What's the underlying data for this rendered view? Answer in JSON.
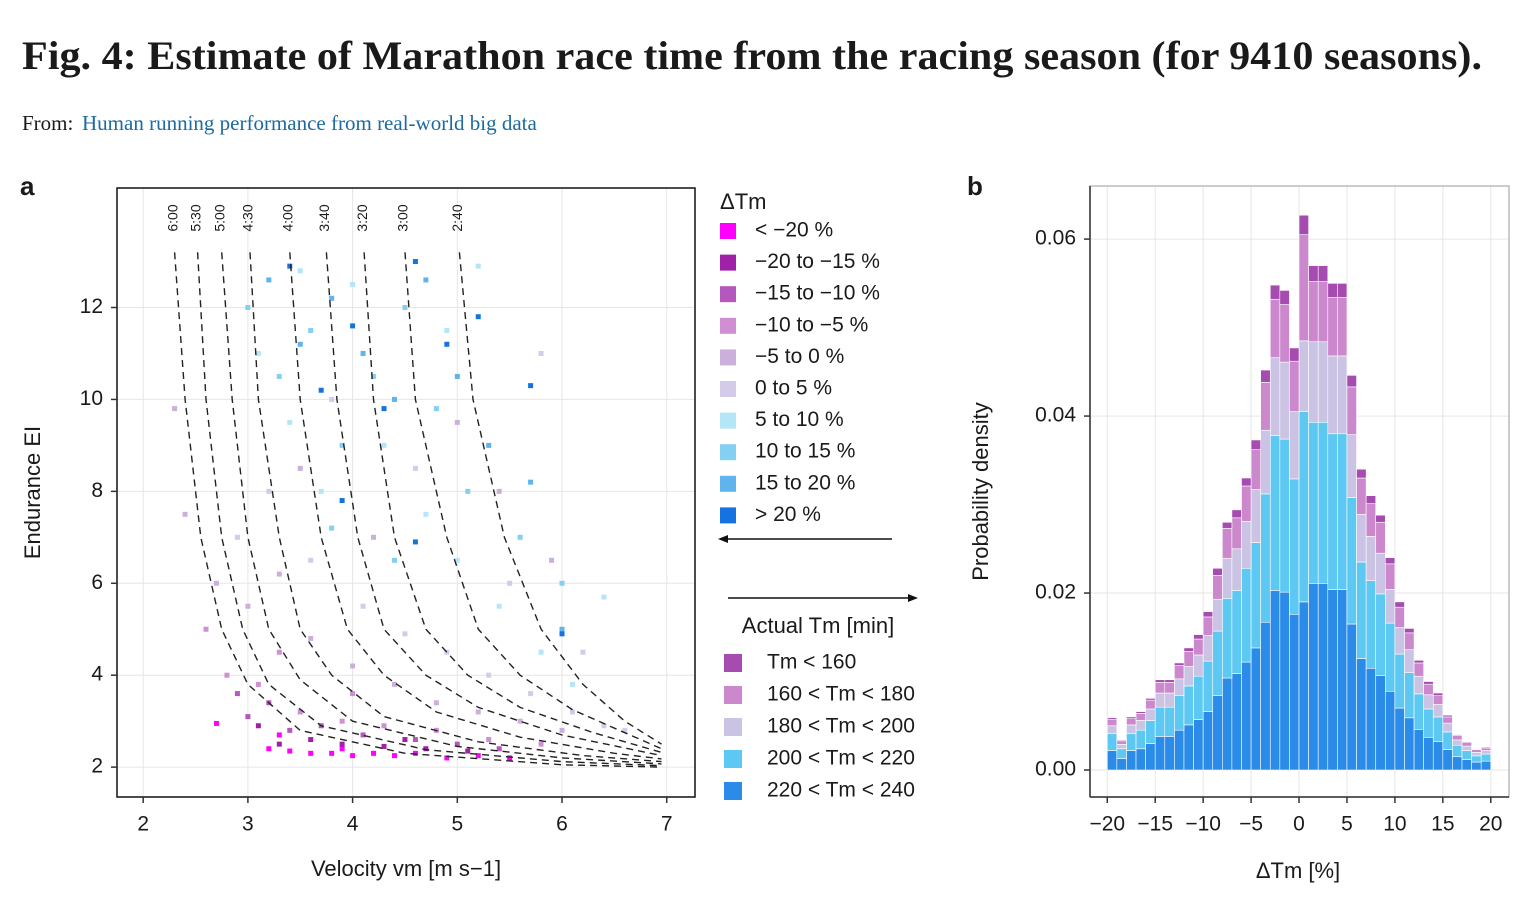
{
  "header": {
    "title": "Fig. 4: Estimate of Marathon race time from the racing season (for 9410 seasons).",
    "from_label": "From:",
    "from_link": "Human running performance from real-world big data"
  },
  "chart_data": [
    {
      "type": "scatter",
      "panel": "a",
      "x_label": "Velocity vm [m s−1]",
      "y_label": "Endurance EI",
      "legend_title": "ΔTm",
      "xlim": [
        1.75,
        7.27
      ],
      "ylim": [
        1.35,
        14.6
      ],
      "xticks": [
        2,
        3,
        4,
        5,
        6,
        7
      ],
      "yticks": [
        2,
        4,
        6,
        8,
        10,
        12
      ],
      "grid": true,
      "series": [
        {
          "name": "< −20 %",
          "color": "#ff00ff",
          "x": [
            2.7,
            3.2,
            3.4,
            3.6,
            3.8,
            4.0,
            4.2,
            4.4,
            4.6,
            4.9,
            5.2,
            5.5,
            3.3,
            3.9
          ],
          "y": [
            2.95,
            2.4,
            2.35,
            2.3,
            2.3,
            2.25,
            2.3,
            2.25,
            2.3,
            2.2,
            2.25,
            2.2,
            2.7,
            2.4
          ]
        },
        {
          "name": "−20 to −15 %",
          "color": "#a020a8",
          "x": [
            3.3,
            3.6,
            3.9,
            4.3,
            4.7,
            5.1,
            3.1,
            4.5
          ],
          "y": [
            2.5,
            2.6,
            2.5,
            2.45,
            2.4,
            2.35,
            2.9,
            2.6
          ]
        },
        {
          "name": "−15 to −10 %",
          "color": "#b558bd",
          "x": [
            3.0,
            3.4,
            3.7,
            4.1,
            4.6,
            5.0,
            5.4,
            3.2,
            2.9
          ],
          "y": [
            3.1,
            2.8,
            2.9,
            2.7,
            2.6,
            2.5,
            2.4,
            3.4,
            3.6
          ]
        },
        {
          "name": "−10 to −5 %",
          "color": "#d08fd2",
          "x": [
            2.6,
            2.8,
            3.1,
            3.5,
            3.9,
            4.3,
            4.8,
            5.3,
            5.8,
            3.3,
            4.0
          ],
          "y": [
            5.0,
            4.0,
            3.8,
            3.2,
            3.0,
            2.9,
            2.8,
            2.6,
            2.5,
            4.5,
            3.6
          ]
        },
        {
          "name": "−5 to 0 %",
          "color": "#cbb0dc",
          "x": [
            2.4,
            2.7,
            3.0,
            3.3,
            3.6,
            4.0,
            4.4,
            4.8,
            5.2,
            5.6,
            6.0,
            3.5,
            4.2,
            5.0,
            5.4,
            2.3,
            5.9
          ],
          "y": [
            7.5,
            6.0,
            5.5,
            6.2,
            4.8,
            4.2,
            3.8,
            3.4,
            3.2,
            3.0,
            2.8,
            8.5,
            7.0,
            9.5,
            8.0,
            9.8,
            6.5
          ]
        },
        {
          "name": "0 to 5 %",
          "color": "#d3cbe9",
          "x": [
            2.9,
            3.2,
            3.6,
            4.1,
            4.5,
            4.9,
            5.3,
            5.7,
            6.1,
            6.4,
            3.8,
            4.6,
            5.5,
            6.2,
            6.6,
            5.8
          ],
          "y": [
            7.0,
            8.0,
            6.5,
            5.5,
            4.9,
            4.5,
            4.0,
            3.6,
            3.2,
            2.9,
            10.0,
            8.5,
            6.0,
            4.5,
            2.8,
            11.0
          ]
        },
        {
          "name": "5 to 10 %",
          "color": "#b5e6f8",
          "x": [
            3.1,
            3.4,
            3.7,
            4.0,
            4.3,
            4.7,
            5.0,
            5.4,
            5.8,
            6.4,
            3.5,
            4.9,
            6.1,
            5.2
          ],
          "y": [
            11.0,
            9.5,
            8.0,
            12.5,
            9.0,
            7.5,
            6.5,
            5.5,
            4.5,
            5.7,
            12.8,
            11.5,
            3.8,
            12.9
          ]
        },
        {
          "name": "10 to 15 %",
          "color": "#83d0f2",
          "x": [
            3.0,
            3.3,
            3.6,
            3.9,
            4.2,
            4.5,
            4.8,
            5.1,
            5.6,
            6.0,
            4.4,
            3.8
          ],
          "y": [
            12.0,
            10.5,
            11.5,
            9.0,
            10.5,
            12.0,
            9.8,
            8.0,
            7.0,
            6.0,
            6.5,
            7.2
          ]
        },
        {
          "name": "15 to 20 %",
          "color": "#5fb4ee",
          "x": [
            3.2,
            3.5,
            3.8,
            4.1,
            4.4,
            4.7,
            5.0,
            5.3,
            5.7,
            6.0
          ],
          "y": [
            12.6,
            11.2,
            12.2,
            11.0,
            10.0,
            12.6,
            10.5,
            9.0,
            8.2,
            5.0
          ]
        },
        {
          "name": "> 20 %",
          "color": "#1473e0",
          "x": [
            3.4,
            3.7,
            4.0,
            4.3,
            4.6,
            4.9,
            5.2,
            5.7,
            6.0,
            3.9,
            4.6
          ],
          "y": [
            12.9,
            10.2,
            11.6,
            9.8,
            13.0,
            11.2,
            11.8,
            10.3,
            4.9,
            7.8,
            6.9
          ]
        }
      ],
      "curves": [
        {
          "label": "6:00",
          "x": [
            2.3,
            2.4,
            2.55,
            2.75,
            3.0,
            3.5,
            4.5,
            6.0,
            6.95
          ],
          "y": [
            13.2,
            10,
            7,
            5,
            3.8,
            2.8,
            2.3,
            2.05,
            2.0
          ]
        },
        {
          "label": "5:30",
          "x": [
            2.52,
            2.6,
            2.75,
            2.95,
            3.2,
            3.7,
            4.7,
            6.0,
            6.95
          ],
          "y": [
            13.2,
            10,
            7,
            5,
            3.8,
            2.9,
            2.38,
            2.12,
            2.03
          ]
        },
        {
          "label": "5:00",
          "x": [
            2.75,
            2.85,
            3.0,
            3.2,
            3.5,
            4.0,
            5.0,
            6.0,
            6.95
          ],
          "y": [
            13.2,
            10,
            7,
            5,
            3.9,
            3.0,
            2.45,
            2.2,
            2.07
          ]
        },
        {
          "label": "4:30",
          "x": [
            3.02,
            3.1,
            3.3,
            3.5,
            3.8,
            4.3,
            5.2,
            6.2,
            6.95
          ],
          "y": [
            13.2,
            10,
            7,
            5,
            4.0,
            3.1,
            2.55,
            2.25,
            2.12
          ]
        },
        {
          "label": "4:00",
          "x": [
            3.4,
            3.5,
            3.7,
            3.95,
            4.3,
            4.8,
            5.6,
            6.5,
            6.95
          ],
          "y": [
            13.2,
            10,
            7,
            5,
            4.0,
            3.2,
            2.65,
            2.3,
            2.18
          ]
        },
        {
          "label": "3:40",
          "x": [
            3.75,
            3.85,
            4.05,
            4.3,
            4.7,
            5.2,
            6.0,
            6.95
          ],
          "y": [
            13.2,
            10,
            7,
            5,
            4.0,
            3.3,
            2.7,
            2.25
          ]
        },
        {
          "label": "3:20",
          "x": [
            4.11,
            4.2,
            4.4,
            4.7,
            5.1,
            5.6,
            6.3,
            6.95
          ],
          "y": [
            13.2,
            10,
            7,
            5,
            4.0,
            3.3,
            2.75,
            2.32
          ]
        },
        {
          "label": "3:00",
          "x": [
            4.5,
            4.6,
            4.9,
            5.2,
            5.6,
            6.1,
            6.6,
            6.95
          ],
          "y": [
            13.2,
            10,
            7,
            5,
            4.0,
            3.25,
            2.75,
            2.4
          ]
        },
        {
          "label": "2:40",
          "x": [
            5.02,
            5.15,
            5.45,
            5.8,
            6.2,
            6.6,
            6.95
          ],
          "y": [
            13.2,
            10,
            7,
            5,
            3.8,
            3.0,
            2.5
          ]
        }
      ]
    },
    {
      "type": "histogram",
      "panel": "b",
      "x_label": "ΔTm [%]",
      "y_label": "Probability density",
      "legend_title": "Actual Tm [min]",
      "xlim": [
        -21.8,
        21.9
      ],
      "ylim": [
        -0.00305,
        0.066
      ],
      "xticks": [
        {
          "value": -20,
          "label": "−20"
        },
        {
          "value": -15,
          "label": "−15"
        },
        {
          "value": -10,
          "label": "−10"
        },
        {
          "value": -5,
          "label": "−5"
        },
        0,
        5,
        10,
        15,
        20
      ],
      "yticks": [
        {
          "value": 0,
          "label": "0.00"
        },
        0.02,
        0.04,
        0.06
      ],
      "grid": true,
      "bins": [
        -20,
        -19,
        -18,
        -17,
        -16,
        -15,
        -14,
        -13,
        -12,
        -11,
        -10,
        -9,
        -8,
        -7,
        -6,
        -5,
        -4,
        -3,
        -2,
        -1,
        0,
        1,
        2,
        3,
        4,
        5,
        6,
        7,
        8,
        9,
        10,
        11,
        12,
        13,
        14,
        15,
        16,
        17,
        18,
        19,
        20
      ],
      "series": [
        {
          "name": "Tm < 160",
          "color": "#a64bb0",
          "values": [
            0.0002,
            0.0001,
            0.0002,
            0.0002,
            0.0002,
            0.0003,
            0.0003,
            0.0003,
            0.0004,
            0.0005,
            0.0006,
            0.0008,
            0.0007,
            0.0009,
            0.0009,
            0.0011,
            0.0014,
            0.0016,
            0.0016,
            0.0015,
            0.0022,
            0.0018,
            0.0018,
            0.0016,
            0.0016,
            0.0013,
            0.001,
            0.0009,
            0.0008,
            0.0007,
            0.0006,
            0.0005,
            0.0003,
            0.0003,
            0.0003,
            0.0002,
            0.0001,
            0.0001,
            0,
            0.0001
          ]
        },
        {
          "name": "160 < Tm < 180",
          "color": "#cc88cc",
          "values": [
            0.0007,
            0.0004,
            0.0007,
            0.0008,
            0.001,
            0.0012,
            0.0012,
            0.0015,
            0.0017,
            0.0018,
            0.0021,
            0.0027,
            0.0034,
            0.0035,
            0.004,
            0.0045,
            0.0054,
            0.0066,
            0.0065,
            0.0057,
            0.012,
            0.0068,
            0.0068,
            0.0066,
            0.0066,
            0.0054,
            0.0041,
            0.0037,
            0.0035,
            0.0029,
            0.0023,
            0.0019,
            0.0015,
            0.0012,
            0.001,
            0.0007,
            0.0005,
            0.0004,
            0.0003,
            0.0003
          ]
        },
        {
          "name": "180 < Tm < 200",
          "color": "#cbc3e3",
          "values": [
            0.0009,
            0.0005,
            0.001,
            0.0011,
            0.0013,
            0.0016,
            0.0016,
            0.0019,
            0.0022,
            0.0024,
            0.0029,
            0.0036,
            0.0045,
            0.0047,
            0.0053,
            0.006,
            0.0072,
            0.0088,
            0.0087,
            0.0076,
            0.008,
            0.0091,
            0.0091,
            0.0088,
            0.0088,
            0.0071,
            0.0054,
            0.005,
            0.0046,
            0.0038,
            0.003,
            0.0026,
            0.002,
            0.0016,
            0.0014,
            0.001,
            0.0006,
            0.0005,
            0.0004,
            0.0004
          ]
        },
        {
          "name": "200 < Tm < 220",
          "color": "#5dc8f2",
          "values": [
            0.0019,
            0.0011,
            0.0019,
            0.0021,
            0.0026,
            0.0033,
            0.0033,
            0.0039,
            0.0044,
            0.0049,
            0.0057,
            0.0073,
            0.009,
            0.0094,
            0.0106,
            0.0119,
            0.0145,
            0.0175,
            0.0173,
            0.0153,
            0.0215,
            0.0182,
            0.0182,
            0.0176,
            0.0176,
            0.0143,
            0.0109,
            0.0099,
            0.0092,
            0.0077,
            0.0061,
            0.0051,
            0.004,
            0.0032,
            0.0028,
            0.002,
            0.0013,
            0.001,
            0.0007,
            0.0008
          ]
        },
        {
          "name": "220 < Tm < 240",
          "color": "#2a8be8",
          "values": [
            0.0022,
            0.0013,
            0.0022,
            0.0024,
            0.003,
            0.0038,
            0.0038,
            0.0045,
            0.0051,
            0.0057,
            0.0066,
            0.0084,
            0.0104,
            0.0109,
            0.0122,
            0.0138,
            0.0167,
            0.0203,
            0.0201,
            0.0176,
            0.019,
            0.0211,
            0.0211,
            0.0204,
            0.0204,
            0.0165,
            0.0126,
            0.0115,
            0.0107,
            0.0089,
            0.007,
            0.0059,
            0.0046,
            0.0037,
            0.0032,
            0.0023,
            0.0015,
            0.0012,
            0.0009,
            0.001
          ]
        }
      ]
    }
  ]
}
